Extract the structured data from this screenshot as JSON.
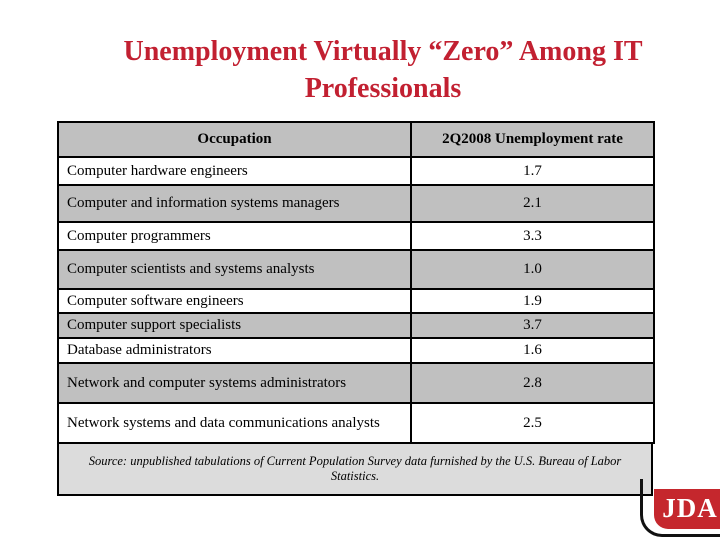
{
  "slide": {
    "title": "Unemployment Virtually “Zero” Among IT Professionals",
    "title_color": "#c22031"
  },
  "table": {
    "col_headers": [
      "Occupation",
      "2Q2008 Unemployment rate"
    ],
    "rows": [
      {
        "occupation": "Computer hardware engineers",
        "rate": "1.7"
      },
      {
        "occupation": "Computer and information systems managers",
        "rate": "2.1"
      },
      {
        "occupation": "Computer programmers",
        "rate": "3.3"
      },
      {
        "occupation": "Computer scientists and systems analysts",
        "rate": "1.0"
      },
      {
        "occupation": "Computer software engineers",
        "rate": "1.9"
      },
      {
        "occupation": "Computer support specialists",
        "rate": "3.7"
      },
      {
        "occupation": "Database administrators",
        "rate": "1.6"
      },
      {
        "occupation": "Network and computer systems administrators",
        "rate": "2.8"
      },
      {
        "occupation": "Network systems and data communications analysts",
        "rate": "2.5"
      }
    ],
    "colors": {
      "header_bg": "#c0c0c0",
      "stripe_bg": "#c0c0c0",
      "source_bg": "#dcdcdc",
      "border": "#000000"
    }
  },
  "source_note": "Source: unpublished tabulations of Current Population Survey data furnished by the U.S. Bureau of Labor Statistics.",
  "logo": {
    "text": "JDA",
    "red": "#c5272d"
  },
  "chart_data": {
    "type": "table",
    "title": "Unemployment Virtually “Zero” Among IT Professionals",
    "columns": [
      "Occupation",
      "2Q2008 Unemployment rate"
    ],
    "rows": [
      [
        "Computer hardware engineers",
        1.7
      ],
      [
        "Computer and information systems managers",
        2.1
      ],
      [
        "Computer programmers",
        3.3
      ],
      [
        "Computer scientists and systems analysts",
        1.0
      ],
      [
        "Computer software engineers",
        1.9
      ],
      [
        "Computer support specialists",
        3.7
      ],
      [
        "Database administrators",
        1.6
      ],
      [
        "Network and computer systems administrators",
        2.8
      ],
      [
        "Network systems and data communications analysts",
        2.5
      ]
    ]
  }
}
